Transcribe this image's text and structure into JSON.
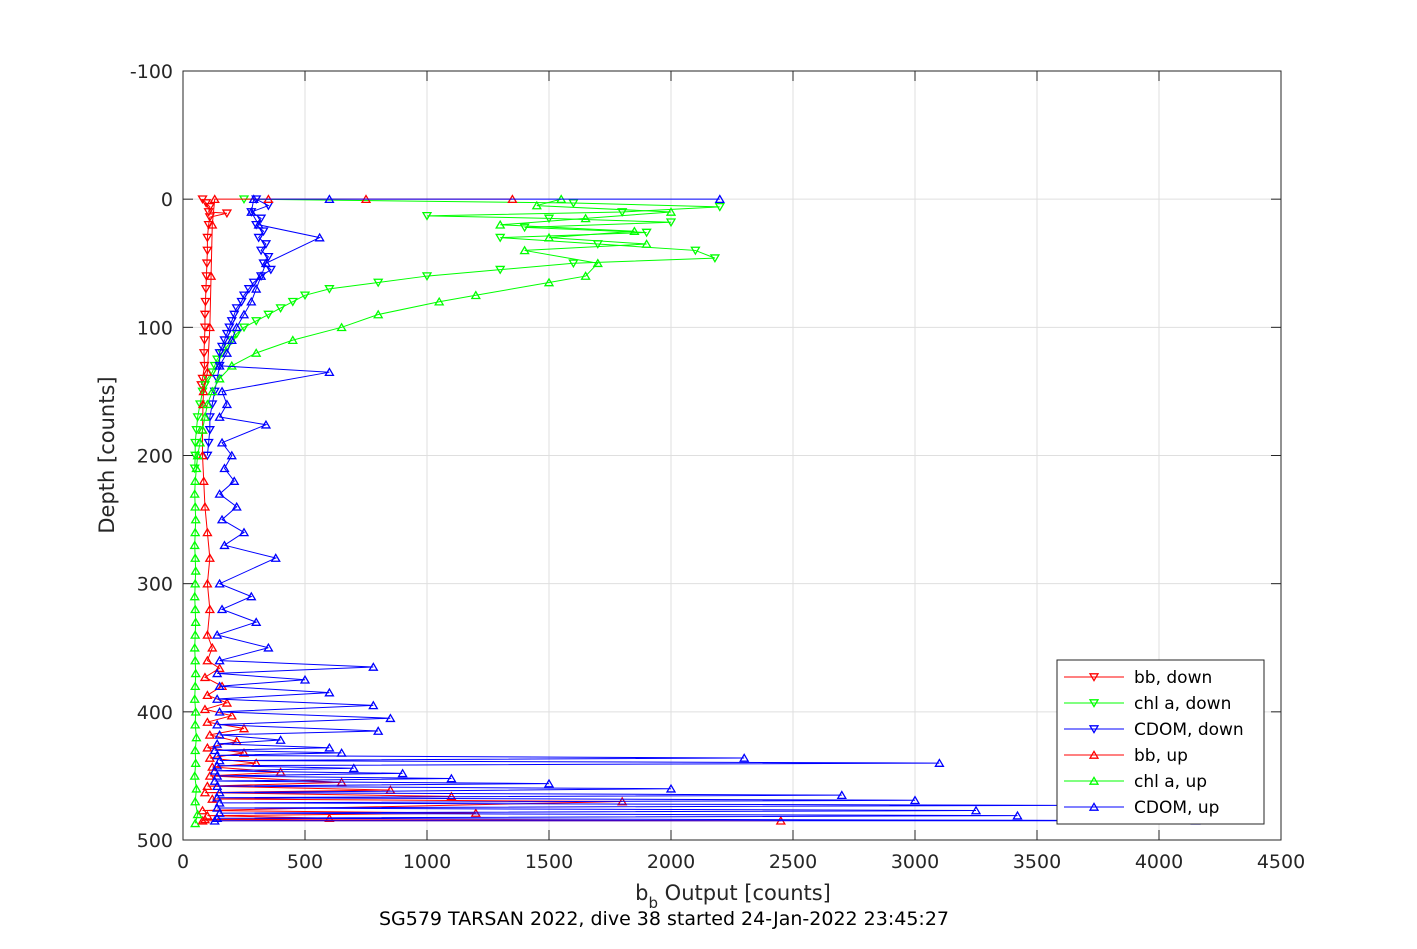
{
  "chart_data": {
    "type": "line",
    "title": "",
    "xlabel_main": "b",
    "xlabel_sub": "b",
    "xlabel_rest": " Output [counts]",
    "ylabel": "Depth [counts]",
    "caption": "SG579 TARSAN 2022, dive 38 started 24-Jan-2022 23:45:27",
    "xlim": [
      0,
      4500
    ],
    "ylim": [
      -100,
      500
    ],
    "y_reversed": true,
    "grid": true,
    "xticks": [
      "0",
      "500",
      "1000",
      "1500",
      "2000",
      "2500",
      "3000",
      "3500",
      "4000",
      "4500"
    ],
    "yticks": [
      "-100",
      "0",
      "100",
      "200",
      "300",
      "400",
      "500"
    ],
    "legend_position": "bottom-right",
    "colors": {
      "bb": "#ff0000",
      "chl": "#00ff00",
      "cdom": "#0000ff"
    },
    "series": [
      {
        "name": "bb, down",
        "marker": "triangle-down",
        "color": "#ff0000",
        "points": [
          [
            80,
            0
          ],
          [
            95,
            3
          ],
          [
            110,
            6
          ],
          [
            105,
            10
          ],
          [
            180,
            11
          ],
          [
            110,
            14
          ],
          [
            105,
            20
          ],
          [
            100,
            30
          ],
          [
            100,
            40
          ],
          [
            98,
            50
          ],
          [
            96,
            60
          ],
          [
            94,
            70
          ],
          [
            92,
            80
          ],
          [
            90,
            90
          ],
          [
            90,
            100
          ],
          [
            88,
            110
          ],
          [
            86,
            120
          ],
          [
            88,
            130
          ],
          [
            80,
            140
          ],
          [
            75,
            145
          ]
        ]
      },
      {
        "name": "chl a, down",
        "marker": "triangle-down",
        "color": "#00ff00",
        "points": [
          [
            250,
            0
          ],
          [
            1600,
            3
          ],
          [
            2200,
            6
          ],
          [
            1800,
            10
          ],
          [
            1000,
            13
          ],
          [
            1500,
            15
          ],
          [
            2000,
            18
          ],
          [
            1400,
            22
          ],
          [
            1900,
            26
          ],
          [
            1300,
            30
          ],
          [
            1700,
            35
          ],
          [
            2100,
            40
          ],
          [
            2180,
            46
          ],
          [
            1600,
            50
          ],
          [
            1300,
            55
          ],
          [
            1000,
            60
          ],
          [
            800,
            65
          ],
          [
            600,
            70
          ],
          [
            500,
            75
          ],
          [
            450,
            80
          ],
          [
            400,
            85
          ],
          [
            350,
            90
          ],
          [
            300,
            95
          ],
          [
            250,
            100
          ],
          [
            220,
            105
          ],
          [
            200,
            110
          ],
          [
            180,
            115
          ],
          [
            160,
            120
          ],
          [
            140,
            125
          ],
          [
            130,
            130
          ],
          [
            120,
            135
          ],
          [
            100,
            140
          ],
          [
            90,
            145
          ],
          [
            80,
            150
          ],
          [
            70,
            160
          ],
          [
            60,
            170
          ],
          [
            55,
            180
          ],
          [
            50,
            190
          ],
          [
            50,
            200
          ],
          [
            48,
            210
          ]
        ]
      },
      {
        "name": "CDOM, down",
        "marker": "triangle-down",
        "color": "#0000ff",
        "points": [
          [
            300,
            0
          ],
          [
            350,
            5
          ],
          [
            280,
            10
          ],
          [
            320,
            15
          ],
          [
            300,
            20
          ],
          [
            330,
            25
          ],
          [
            310,
            30
          ],
          [
            340,
            35
          ],
          [
            320,
            40
          ],
          [
            350,
            45
          ],
          [
            330,
            50
          ],
          [
            360,
            55
          ],
          [
            320,
            60
          ],
          [
            290,
            65
          ],
          [
            270,
            70
          ],
          [
            250,
            75
          ],
          [
            240,
            80
          ],
          [
            220,
            85
          ],
          [
            210,
            90
          ],
          [
            200,
            95
          ],
          [
            190,
            100
          ],
          [
            180,
            105
          ],
          [
            170,
            110
          ],
          [
            160,
            115
          ],
          [
            150,
            120
          ],
          [
            150,
            130
          ],
          [
            140,
            140
          ],
          [
            130,
            150
          ],
          [
            120,
            160
          ],
          [
            110,
            170
          ],
          [
            110,
            180
          ],
          [
            105,
            190
          ],
          [
            100,
            200
          ]
        ]
      },
      {
        "name": "bb, up",
        "marker": "triangle-up",
        "color": "#ff0000",
        "points": [
          [
            80,
            485
          ],
          [
            2450,
            485
          ],
          [
            90,
            484
          ],
          [
            600,
            483
          ],
          [
            100,
            481
          ],
          [
            1200,
            479
          ],
          [
            80,
            477
          ],
          [
            1800,
            470
          ],
          [
            120,
            468
          ],
          [
            1100,
            466
          ],
          [
            90,
            463
          ],
          [
            850,
            461
          ],
          [
            100,
            458
          ],
          [
            650,
            455
          ],
          [
            110,
            450
          ],
          [
            400,
            447
          ],
          [
            120,
            443
          ],
          [
            300,
            440
          ],
          [
            110,
            436
          ],
          [
            250,
            432
          ],
          [
            100,
            428
          ],
          [
            220,
            423
          ],
          [
            110,
            418
          ],
          [
            250,
            413
          ],
          [
            100,
            408
          ],
          [
            200,
            403
          ],
          [
            90,
            398
          ],
          [
            180,
            393
          ],
          [
            100,
            387
          ],
          [
            160,
            380
          ],
          [
            90,
            373
          ],
          [
            150,
            366
          ],
          [
            100,
            360
          ],
          [
            120,
            350
          ],
          [
            100,
            340
          ],
          [
            110,
            320
          ],
          [
            100,
            300
          ],
          [
            110,
            280
          ],
          [
            100,
            260
          ],
          [
            90,
            240
          ],
          [
            85,
            220
          ],
          [
            80,
            200
          ],
          [
            80,
            180
          ],
          [
            82,
            160
          ],
          [
            84,
            150
          ],
          [
            100,
            135
          ],
          [
            110,
            100
          ],
          [
            115,
            60
          ],
          [
            120,
            20
          ],
          [
            130,
            0
          ],
          [
            350,
            0
          ],
          [
            750,
            0
          ],
          [
            1350,
            0
          ]
        ]
      },
      {
        "name": "chl a, up",
        "marker": "triangle-up",
        "color": "#00ff00",
        "points": [
          [
            50,
            487
          ],
          [
            60,
            480
          ],
          [
            50,
            470
          ],
          [
            55,
            460
          ],
          [
            48,
            450
          ],
          [
            52,
            440
          ],
          [
            50,
            430
          ],
          [
            55,
            420
          ],
          [
            50,
            410
          ],
          [
            52,
            400
          ],
          [
            48,
            390
          ],
          [
            50,
            380
          ],
          [
            52,
            370
          ],
          [
            50,
            360
          ],
          [
            48,
            350
          ],
          [
            50,
            340
          ],
          [
            52,
            330
          ],
          [
            50,
            320
          ],
          [
            48,
            310
          ],
          [
            50,
            300
          ],
          [
            52,
            290
          ],
          [
            50,
            280
          ],
          [
            48,
            270
          ],
          [
            50,
            260
          ],
          [
            52,
            250
          ],
          [
            50,
            240
          ],
          [
            48,
            230
          ],
          [
            50,
            220
          ],
          [
            55,
            210
          ],
          [
            60,
            200
          ],
          [
            70,
            190
          ],
          [
            80,
            180
          ],
          [
            90,
            170
          ],
          [
            100,
            160
          ],
          [
            120,
            150
          ],
          [
            150,
            140
          ],
          [
            200,
            130
          ],
          [
            300,
            120
          ],
          [
            450,
            110
          ],
          [
            650,
            100
          ],
          [
            800,
            90
          ],
          [
            1050,
            80
          ],
          [
            1200,
            75
          ],
          [
            1500,
            65
          ],
          [
            1650,
            60
          ],
          [
            1700,
            50
          ],
          [
            1400,
            40
          ],
          [
            1900,
            35
          ],
          [
            1500,
            30
          ],
          [
            1850,
            25
          ],
          [
            1300,
            20
          ],
          [
            1650,
            15
          ],
          [
            2000,
            10
          ],
          [
            1450,
            5
          ],
          [
            1550,
            0
          ]
        ]
      },
      {
        "name": "CDOM, up",
        "marker": "triangle-up",
        "color": "#0000ff",
        "points": [
          [
            130,
            485
          ],
          [
            4150,
            485
          ],
          [
            140,
            483
          ],
          [
            3420,
            481
          ],
          [
            150,
            479
          ],
          [
            3250,
            477
          ],
          [
            140,
            475
          ],
          [
            3600,
            473
          ],
          [
            150,
            471
          ],
          [
            3000,
            469
          ],
          [
            140,
            467
          ],
          [
            2700,
            465
          ],
          [
            150,
            463
          ],
          [
            2000,
            460
          ],
          [
            140,
            458
          ],
          [
            1500,
            456
          ],
          [
            130,
            454
          ],
          [
            1100,
            452
          ],
          [
            140,
            450
          ],
          [
            900,
            448
          ],
          [
            130,
            446
          ],
          [
            700,
            444
          ],
          [
            140,
            442
          ],
          [
            3100,
            440
          ],
          [
            150,
            438
          ],
          [
            2300,
            436
          ],
          [
            140,
            434
          ],
          [
            650,
            432
          ],
          [
            130,
            430
          ],
          [
            600,
            428
          ],
          [
            140,
            425
          ],
          [
            400,
            422
          ],
          [
            150,
            418
          ],
          [
            800,
            415
          ],
          [
            140,
            410
          ],
          [
            850,
            405
          ],
          [
            150,
            400
          ],
          [
            780,
            395
          ],
          [
            140,
            390
          ],
          [
            600,
            385
          ],
          [
            150,
            380
          ],
          [
            500,
            375
          ],
          [
            140,
            370
          ],
          [
            780,
            365
          ],
          [
            150,
            360
          ],
          [
            350,
            350
          ],
          [
            140,
            340
          ],
          [
            300,
            330
          ],
          [
            160,
            320
          ],
          [
            280,
            310
          ],
          [
            150,
            300
          ],
          [
            380,
            280
          ],
          [
            170,
            270
          ],
          [
            250,
            260
          ],
          [
            160,
            250
          ],
          [
            220,
            240
          ],
          [
            150,
            230
          ],
          [
            210,
            220
          ],
          [
            170,
            210
          ],
          [
            200,
            200
          ],
          [
            160,
            190
          ],
          [
            340,
            176
          ],
          [
            150,
            170
          ],
          [
            180,
            160
          ],
          [
            160,
            150
          ],
          [
            600,
            135
          ],
          [
            150,
            130
          ],
          [
            180,
            120
          ],
          [
            200,
            110
          ],
          [
            220,
            100
          ],
          [
            250,
            90
          ],
          [
            280,
            80
          ],
          [
            300,
            70
          ],
          [
            320,
            60
          ],
          [
            340,
            50
          ],
          [
            560,
            30
          ],
          [
            310,
            20
          ],
          [
            280,
            10
          ],
          [
            290,
            0
          ],
          [
            600,
            0
          ],
          [
            2200,
            0
          ]
        ]
      }
    ]
  }
}
